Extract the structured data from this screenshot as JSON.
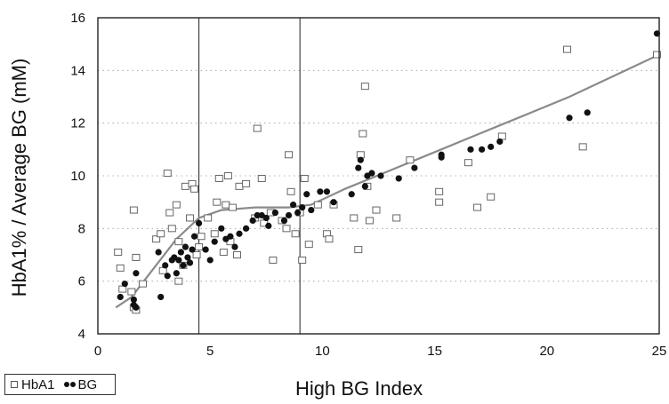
{
  "chart_data": {
    "type": "scatter",
    "title": "",
    "xlabel": "High BG Index",
    "ylabel": "HbA1% / Average BG (mM)",
    "xlim": [
      0,
      25
    ],
    "ylim": [
      4,
      16
    ],
    "xticks": [
      0,
      5,
      10,
      15,
      20,
      25
    ],
    "yticks": [
      4,
      6,
      8,
      10,
      12,
      14,
      16
    ],
    "grid": "horizontal dotted",
    "vertical_markers": [
      4.5,
      9.0
    ],
    "legend_placement": "bottom-left outside",
    "series": [
      {
        "name": "HbA1",
        "marker": "open-square",
        "color": "#666666",
        "points": [
          [
            0.9,
            7.1
          ],
          [
            1.0,
            6.5
          ],
          [
            1.1,
            5.7
          ],
          [
            1.5,
            5.6
          ],
          [
            1.6,
            8.7
          ],
          [
            1.7,
            6.9
          ],
          [
            1.6,
            5.0
          ],
          [
            1.7,
            4.9
          ],
          [
            2.0,
            5.9
          ],
          [
            2.6,
            7.6
          ],
          [
            2.8,
            7.8
          ],
          [
            2.9,
            6.4
          ],
          [
            3.1,
            10.1
          ],
          [
            3.2,
            8.6
          ],
          [
            3.3,
            8.0
          ],
          [
            3.5,
            8.9
          ],
          [
            3.6,
            6.0
          ],
          [
            3.6,
            7.5
          ],
          [
            3.8,
            6.6
          ],
          [
            3.9,
            9.6
          ],
          [
            4.1,
            8.4
          ],
          [
            4.2,
            9.7
          ],
          [
            4.3,
            9.5
          ],
          [
            4.4,
            7.0
          ],
          [
            4.5,
            7.3
          ],
          [
            4.6,
            7.7
          ],
          [
            4.9,
            8.4
          ],
          [
            5.2,
            7.8
          ],
          [
            5.3,
            9.0
          ],
          [
            5.4,
            9.9
          ],
          [
            5.6,
            7.1
          ],
          [
            5.7,
            8.9
          ],
          [
            5.8,
            10.0
          ],
          [
            5.9,
            7.5
          ],
          [
            6.0,
            8.8
          ],
          [
            6.2,
            7.0
          ],
          [
            6.3,
            9.6
          ],
          [
            6.6,
            9.7
          ],
          [
            7.0,
            8.4
          ],
          [
            7.1,
            11.8
          ],
          [
            7.3,
            9.9
          ],
          [
            7.4,
            8.2
          ],
          [
            7.7,
            8.6
          ],
          [
            7.8,
            6.8
          ],
          [
            8.2,
            8.3
          ],
          [
            8.4,
            8.0
          ],
          [
            8.5,
            10.8
          ],
          [
            8.6,
            9.4
          ],
          [
            8.8,
            7.8
          ],
          [
            9.0,
            8.6
          ],
          [
            9.1,
            6.8
          ],
          [
            9.2,
            9.9
          ],
          [
            9.4,
            7.4
          ],
          [
            9.8,
            8.9
          ],
          [
            10.2,
            7.8
          ],
          [
            10.3,
            7.6
          ],
          [
            10.5,
            8.9
          ],
          [
            11.4,
            8.4
          ],
          [
            11.6,
            7.2
          ],
          [
            11.7,
            10.8
          ],
          [
            11.8,
            11.6
          ],
          [
            11.9,
            13.4
          ],
          [
            12.0,
            9.6
          ],
          [
            12.1,
            8.3
          ],
          [
            12.4,
            8.7
          ],
          [
            13.3,
            8.4
          ],
          [
            13.9,
            10.6
          ],
          [
            15.2,
            9.0
          ],
          [
            15.2,
            9.4
          ],
          [
            16.5,
            10.5
          ],
          [
            16.9,
            8.8
          ],
          [
            17.5,
            9.2
          ],
          [
            18.0,
            11.5
          ],
          [
            20.9,
            14.8
          ],
          [
            21.6,
            11.1
          ],
          [
            24.9,
            14.6
          ]
        ]
      },
      {
        "name": "BG",
        "marker": "filled-circle",
        "color": "#111111",
        "points": [
          [
            1.0,
            5.4
          ],
          [
            1.2,
            5.9
          ],
          [
            1.6,
            5.3
          ],
          [
            1.6,
            5.1
          ],
          [
            1.7,
            5.0
          ],
          [
            1.7,
            6.3
          ],
          [
            2.7,
            7.1
          ],
          [
            2.8,
            5.4
          ],
          [
            3.0,
            6.6
          ],
          [
            3.1,
            6.2
          ],
          [
            3.3,
            6.8
          ],
          [
            3.4,
            6.9
          ],
          [
            3.5,
            6.3
          ],
          [
            3.6,
            6.8
          ],
          [
            3.7,
            7.1
          ],
          [
            3.8,
            6.6
          ],
          [
            3.9,
            7.3
          ],
          [
            4.0,
            6.9
          ],
          [
            4.1,
            6.7
          ],
          [
            4.2,
            7.2
          ],
          [
            4.3,
            7.7
          ],
          [
            4.5,
            8.2
          ],
          [
            4.8,
            7.2
          ],
          [
            5.0,
            6.8
          ],
          [
            5.2,
            7.5
          ],
          [
            5.5,
            8.0
          ],
          [
            5.7,
            7.6
          ],
          [
            5.9,
            7.7
          ],
          [
            6.1,
            7.3
          ],
          [
            6.3,
            7.8
          ],
          [
            6.6,
            8.0
          ],
          [
            6.9,
            8.3
          ],
          [
            7.1,
            8.5
          ],
          [
            7.3,
            8.5
          ],
          [
            7.5,
            8.4
          ],
          [
            7.6,
            8.1
          ],
          [
            7.9,
            8.6
          ],
          [
            8.3,
            8.3
          ],
          [
            8.5,
            8.5
          ],
          [
            8.7,
            8.9
          ],
          [
            8.9,
            8.6
          ],
          [
            9.1,
            8.8
          ],
          [
            9.3,
            9.3
          ],
          [
            9.5,
            8.7
          ],
          [
            9.9,
            9.4
          ],
          [
            10.2,
            9.4
          ],
          [
            10.5,
            9.0
          ],
          [
            11.3,
            9.3
          ],
          [
            11.6,
            10.3
          ],
          [
            11.7,
            10.6
          ],
          [
            11.9,
            9.6
          ],
          [
            12.0,
            10.0
          ],
          [
            12.2,
            10.1
          ],
          [
            12.6,
            10.0
          ],
          [
            13.4,
            9.9
          ],
          [
            14.1,
            10.3
          ],
          [
            15.3,
            10.8
          ],
          [
            15.3,
            10.7
          ],
          [
            16.6,
            11.0
          ],
          [
            17.1,
            11.0
          ],
          [
            17.5,
            11.1
          ],
          [
            17.9,
            11.3
          ],
          [
            21.0,
            12.2
          ],
          [
            21.8,
            12.4
          ],
          [
            24.9,
            15.4
          ]
        ]
      }
    ],
    "trend_line": {
      "color": "#8a8a8a",
      "points": [
        [
          0.8,
          5.0
        ],
        [
          1.5,
          5.4
        ],
        [
          2.5,
          6.5
        ],
        [
          3.5,
          7.6
        ],
        [
          4.5,
          8.4
        ],
        [
          5.5,
          8.7
        ],
        [
          7.0,
          8.8
        ],
        [
          8.5,
          8.8
        ],
        [
          9.5,
          8.9
        ],
        [
          11.0,
          9.5
        ],
        [
          13.0,
          10.2
        ],
        [
          15.0,
          10.9
        ],
        [
          17.0,
          11.6
        ],
        [
          19.0,
          12.3
        ],
        [
          21.0,
          13.0
        ],
        [
          23.0,
          13.8
        ],
        [
          25.0,
          14.6
        ]
      ]
    }
  },
  "legend": {
    "hba1_label": "HbA1",
    "bg_label": "BG"
  }
}
